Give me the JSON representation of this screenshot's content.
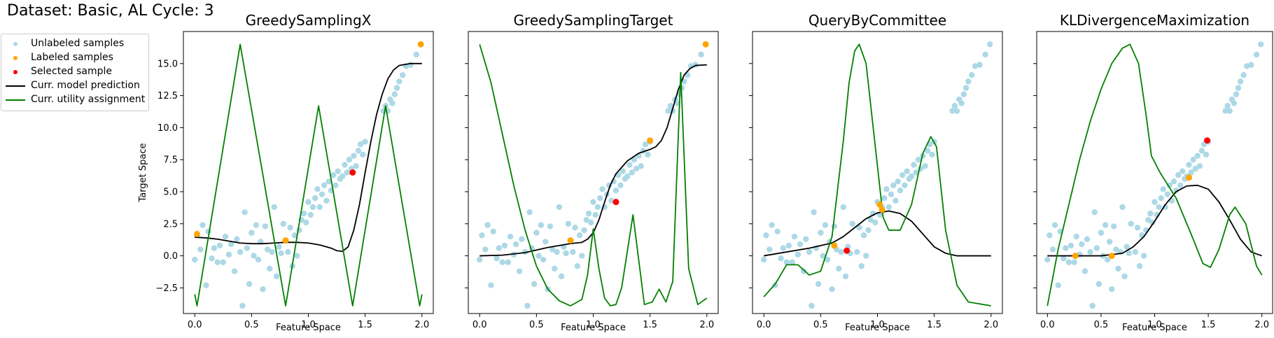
{
  "figure": {
    "suptitle": "Dataset: Basic, AL Cycle: 3"
  },
  "legend": {
    "items": [
      {
        "label": "Unlabeled samples",
        "kind": "dot",
        "color": "#add8e6"
      },
      {
        "label": "Labeled samples",
        "kind": "dot",
        "color": "#ffa500"
      },
      {
        "label": "Selected sample",
        "kind": "dot",
        "color": "#ff0000"
      },
      {
        "label": "Curr. model prediction",
        "kind": "line",
        "color": "#000000"
      },
      {
        "label": "Curr. utility assignment",
        "kind": "line",
        "color": "#008000"
      }
    ]
  },
  "colors": {
    "unlabeled": "#add8e6",
    "labeled": "#ffa500",
    "selected": "#ff0000",
    "prediction": "#000000",
    "utility": "#008000"
  },
  "chart_data": [
    {
      "type": "scatter",
      "title": "GreedySamplingX",
      "xlabel": "Feature Space",
      "ylabel": "Target Space",
      "xlim": [
        -0.1,
        2.1
      ],
      "ylim": [
        -4.5,
        17.5
      ],
      "xticks": [
        "0.0",
        "0.5",
        "1.0",
        "1.5",
        "2.0"
      ],
      "yticks": [
        "−2.5",
        "0.0",
        "2.5",
        "5.0",
        "7.5",
        "10.0",
        "12.5",
        "15.0"
      ],
      "labeled": [
        [
          0.02,
          1.7
        ],
        [
          0.8,
          1.2
        ],
        [
          1.99,
          16.5
        ]
      ],
      "selected": [
        [
          1.39,
          6.5
        ]
      ],
      "prediction": [
        [
          0.0,
          1.45
        ],
        [
          0.1,
          1.4
        ],
        [
          0.2,
          1.3
        ],
        [
          0.3,
          1.15
        ],
        [
          0.4,
          1.0
        ],
        [
          0.5,
          0.95
        ],
        [
          0.6,
          0.95
        ],
        [
          0.7,
          1.0
        ],
        [
          0.8,
          1.05
        ],
        [
          0.9,
          1.05
        ],
        [
          1.0,
          1.0
        ],
        [
          1.1,
          0.85
        ],
        [
          1.2,
          0.6
        ],
        [
          1.25,
          0.4
        ],
        [
          1.3,
          0.35
        ],
        [
          1.35,
          0.7
        ],
        [
          1.4,
          2.0
        ],
        [
          1.45,
          4.0
        ],
        [
          1.5,
          6.5
        ],
        [
          1.55,
          8.9
        ],
        [
          1.6,
          11.0
        ],
        [
          1.65,
          12.6
        ],
        [
          1.7,
          13.8
        ],
        [
          1.75,
          14.5
        ],
        [
          1.8,
          14.85
        ],
        [
          1.9,
          15.0
        ],
        [
          2.0,
          15.0
        ]
      ],
      "utility": [
        [
          0.0,
          -3.0
        ],
        [
          0.02,
          -3.9
        ],
        [
          0.4,
          16.5
        ],
        [
          0.8,
          -3.9
        ],
        [
          1.09,
          11.7
        ],
        [
          1.39,
          -3.9
        ],
        [
          1.68,
          11.7
        ],
        [
          1.98,
          -3.9
        ],
        [
          2.0,
          -3.0
        ]
      ]
    },
    {
      "type": "scatter",
      "title": "GreedySamplingTarget",
      "xlabel": "Feature Space",
      "ylabel": "",
      "xlim": [
        -0.1,
        2.1
      ],
      "ylim": [
        -4.5,
        17.5
      ],
      "xticks": [
        "0.0",
        "0.5",
        "1.0",
        "1.5",
        "2.0"
      ],
      "yticks": [],
      "labeled": [
        [
          0.8,
          1.2
        ],
        [
          1.5,
          9.0
        ],
        [
          1.99,
          16.5
        ]
      ],
      "selected": [
        [
          1.2,
          4.2
        ]
      ],
      "prediction": [
        [
          0.0,
          0.0
        ],
        [
          0.2,
          0.05
        ],
        [
          0.4,
          0.25
        ],
        [
          0.6,
          0.65
        ],
        [
          0.8,
          0.95
        ],
        [
          0.9,
          1.05
        ],
        [
          0.95,
          1.3
        ],
        [
          1.0,
          1.8
        ],
        [
          1.05,
          2.8
        ],
        [
          1.1,
          4.2
        ],
        [
          1.15,
          5.5
        ],
        [
          1.2,
          6.4
        ],
        [
          1.3,
          7.4
        ],
        [
          1.4,
          8.0
        ],
        [
          1.5,
          8.3
        ],
        [
          1.55,
          8.5
        ],
        [
          1.6,
          9.0
        ],
        [
          1.65,
          10.0
        ],
        [
          1.7,
          11.5
        ],
        [
          1.75,
          13.0
        ],
        [
          1.8,
          14.1
        ],
        [
          1.85,
          14.6
        ],
        [
          1.9,
          14.85
        ],
        [
          2.0,
          14.9
        ]
      ],
      "utility": [
        [
          0.0,
          16.5
        ],
        [
          0.1,
          13.5
        ],
        [
          0.2,
          9.5
        ],
        [
          0.3,
          5.5
        ],
        [
          0.4,
          2.0
        ],
        [
          0.5,
          -0.8
        ],
        [
          0.6,
          -2.6
        ],
        [
          0.7,
          -3.5
        ],
        [
          0.8,
          -3.9
        ],
        [
          0.9,
          -3.4
        ],
        [
          0.95,
          -1.5
        ],
        [
          1.0,
          2.1
        ],
        [
          1.05,
          -1.0
        ],
        [
          1.1,
          -3.3
        ],
        [
          1.15,
          -3.9
        ],
        [
          1.2,
          -3.8
        ],
        [
          1.25,
          -2.5
        ],
        [
          1.35,
          3.2
        ],
        [
          1.45,
          -3.8
        ],
        [
          1.52,
          -3.6
        ],
        [
          1.58,
          -2.6
        ],
        [
          1.64,
          -3.6
        ],
        [
          1.7,
          -2.0
        ],
        [
          1.77,
          14.3
        ],
        [
          1.84,
          -1.0
        ],
        [
          1.92,
          -3.8
        ],
        [
          2.0,
          -3.3
        ]
      ]
    },
    {
      "type": "scatter",
      "title": "QueryByCommittee",
      "xlabel": "Feature Space",
      "ylabel": "",
      "xlim": [
        -0.1,
        2.1
      ],
      "ylim": [
        -4.5,
        17.5
      ],
      "xticks": [
        "0.0",
        "0.5",
        "1.0",
        "1.5",
        "2.0"
      ],
      "yticks": [],
      "labeled": [
        [
          0.62,
          0.8
        ],
        [
          1.02,
          4.0
        ],
        [
          1.04,
          3.6
        ]
      ],
      "selected": [
        [
          0.73,
          0.4
        ]
      ],
      "prediction": [
        [
          0.0,
          0.0
        ],
        [
          0.2,
          0.3
        ],
        [
          0.4,
          0.6
        ],
        [
          0.6,
          1.0
        ],
        [
          0.7,
          1.5
        ],
        [
          0.8,
          2.2
        ],
        [
          0.9,
          2.9
        ],
        [
          1.0,
          3.35
        ],
        [
          1.1,
          3.5
        ],
        [
          1.2,
          3.3
        ],
        [
          1.3,
          2.7
        ],
        [
          1.4,
          1.7
        ],
        [
          1.5,
          0.7
        ],
        [
          1.6,
          0.2
        ],
        [
          1.7,
          0.0
        ],
        [
          2.0,
          0.0
        ]
      ],
      "utility": [
        [
          0.0,
          -3.2
        ],
        [
          0.1,
          -2.2
        ],
        [
          0.2,
          -0.7
        ],
        [
          0.3,
          -0.7
        ],
        [
          0.4,
          -1.5
        ],
        [
          0.5,
          -1.2
        ],
        [
          0.6,
          1.5
        ],
        [
          0.7,
          9.0
        ],
        [
          0.75,
          13.5
        ],
        [
          0.8,
          16.0
        ],
        [
          0.84,
          16.5
        ],
        [
          0.9,
          15.0
        ],
        [
          1.0,
          7.0
        ],
        [
          1.05,
          3.0
        ],
        [
          1.1,
          2.0
        ],
        [
          1.2,
          2.0
        ],
        [
          1.3,
          4.0
        ],
        [
          1.4,
          8.0
        ],
        [
          1.47,
          9.3
        ],
        [
          1.52,
          8.5
        ],
        [
          1.6,
          2.0
        ],
        [
          1.7,
          -2.3
        ],
        [
          1.8,
          -3.6
        ],
        [
          2.0,
          -3.9
        ]
      ]
    },
    {
      "type": "scatter",
      "title": "KLDivergenceMaximization",
      "xlabel": "Feature Space",
      "ylabel": "",
      "xlim": [
        -0.1,
        2.1
      ],
      "ylim": [
        -4.5,
        17.5
      ],
      "xticks": [
        "0.0",
        "0.5",
        "1.0",
        "1.5",
        "2.0"
      ],
      "yticks": [],
      "labeled": [
        [
          0.26,
          0.0
        ],
        [
          0.6,
          0.0
        ],
        [
          1.32,
          6.1
        ]
      ],
      "selected": [
        [
          1.49,
          9.0
        ]
      ],
      "prediction": [
        [
          0.0,
          0.0
        ],
        [
          0.5,
          0.0
        ],
        [
          0.7,
          0.2
        ],
        [
          0.8,
          0.7
        ],
        [
          0.9,
          1.5
        ],
        [
          1.0,
          2.7
        ],
        [
          1.1,
          4.0
        ],
        [
          1.2,
          5.0
        ],
        [
          1.3,
          5.45
        ],
        [
          1.4,
          5.5
        ],
        [
          1.5,
          5.2
        ],
        [
          1.6,
          4.2
        ],
        [
          1.7,
          2.8
        ],
        [
          1.8,
          1.3
        ],
        [
          1.9,
          0.3
        ],
        [
          2.0,
          0.0
        ]
      ],
      "utility": [
        [
          0.0,
          -3.9
        ],
        [
          0.1,
          0.5
        ],
        [
          0.2,
          4.0
        ],
        [
          0.3,
          7.5
        ],
        [
          0.4,
          10.5
        ],
        [
          0.5,
          13.0
        ],
        [
          0.6,
          15.0
        ],
        [
          0.7,
          16.2
        ],
        [
          0.77,
          16.5
        ],
        [
          0.85,
          15.0
        ],
        [
          0.92,
          11.0
        ],
        [
          0.97,
          7.8
        ],
        [
          1.05,
          6.5
        ],
        [
          1.2,
          4.5
        ],
        [
          1.35,
          1.5
        ],
        [
          1.45,
          -0.6
        ],
        [
          1.52,
          -0.9
        ],
        [
          1.6,
          0.5
        ],
        [
          1.7,
          3.2
        ],
        [
          1.75,
          3.8
        ],
        [
          1.85,
          2.5
        ],
        [
          1.95,
          -0.8
        ],
        [
          2.0,
          -1.5
        ]
      ]
    }
  ],
  "unlabeled_points": {
    "basic": [
      [
        0.0,
        -0.3
      ],
      [
        0.02,
        1.6
      ],
      [
        0.05,
        0.5
      ],
      [
        0.07,
        2.4
      ],
      [
        0.1,
        -2.3
      ],
      [
        0.12,
        1.9
      ],
      [
        0.15,
        -0.2
      ],
      [
        0.17,
        0.6
      ],
      [
        0.2,
        -0.5
      ],
      [
        0.22,
        0.8
      ],
      [
        0.25,
        -0.5
      ],
      [
        0.27,
        1.5
      ],
      [
        0.3,
        0.1
      ],
      [
        0.32,
        0.9
      ],
      [
        0.35,
        -1.2
      ],
      [
        0.37,
        1.3
      ],
      [
        0.4,
        0.3
      ],
      [
        0.42,
        -3.9
      ],
      [
        0.44,
        3.4
      ],
      [
        0.46,
        0.6
      ],
      [
        0.48,
        -2.2
      ],
      [
        0.5,
        1.8
      ],
      [
        0.52,
        0.0
      ],
      [
        0.54,
        2.4
      ],
      [
        0.56,
        -0.3
      ],
      [
        0.58,
        1.1
      ],
      [
        0.6,
        -2.6
      ],
      [
        0.62,
        2.3
      ],
      [
        0.64,
        0.5
      ],
      [
        0.66,
        -1.0
      ],
      [
        0.68,
        0.3
      ],
      [
        0.7,
        3.8
      ],
      [
        0.72,
        -1.6
      ],
      [
        0.74,
        0.7
      ],
      [
        0.76,
        0.2
      ],
      [
        0.78,
        2.5
      ],
      [
        0.82,
        0.3
      ],
      [
        0.84,
        2.2
      ],
      [
        0.86,
        -0.8
      ],
      [
        0.88,
        1.6
      ],
      [
        0.9,
        0.0
      ],
      [
        0.92,
        2.0
      ],
      [
        0.94,
        2.8
      ],
      [
        0.96,
        3.3
      ],
      [
        0.98,
        2.6
      ],
      [
        1.0,
        4.2
      ],
      [
        1.02,
        3.2
      ],
      [
        1.04,
        3.8
      ],
      [
        1.06,
        4.5
      ],
      [
        1.08,
        5.2
      ],
      [
        1.1,
        3.8
      ],
      [
        1.12,
        4.8
      ],
      [
        1.14,
        5.5
      ],
      [
        1.16,
        4.3
      ],
      [
        1.18,
        5.8
      ],
      [
        1.2,
        5.1
      ],
      [
        1.22,
        6.3
      ],
      [
        1.24,
        5.5
      ],
      [
        1.26,
        6.6
      ],
      [
        1.28,
        6.0
      ],
      [
        1.3,
        6.2
      ],
      [
        1.32,
        7.1
      ],
      [
        1.34,
        6.5
      ],
      [
        1.36,
        7.5
      ],
      [
        1.38,
        6.8
      ],
      [
        1.4,
        7.8
      ],
      [
        1.42,
        7.0
      ],
      [
        1.44,
        8.2
      ],
      [
        1.46,
        8.7
      ],
      [
        1.48,
        7.9
      ],
      [
        1.5,
        8.9
      ],
      [
        1.66,
        11.3
      ],
      [
        1.68,
        11.7
      ],
      [
        1.7,
        11.3
      ],
      [
        1.72,
        12.2
      ],
      [
        1.74,
        11.9
      ],
      [
        1.76,
        12.6
      ],
      [
        1.78,
        13.1
      ],
      [
        1.8,
        13.6
      ],
      [
        1.83,
        14.1
      ],
      [
        1.86,
        14.8
      ],
      [
        1.9,
        14.9
      ],
      [
        1.95,
        15.7
      ],
      [
        1.99,
        16.5
      ]
    ]
  }
}
